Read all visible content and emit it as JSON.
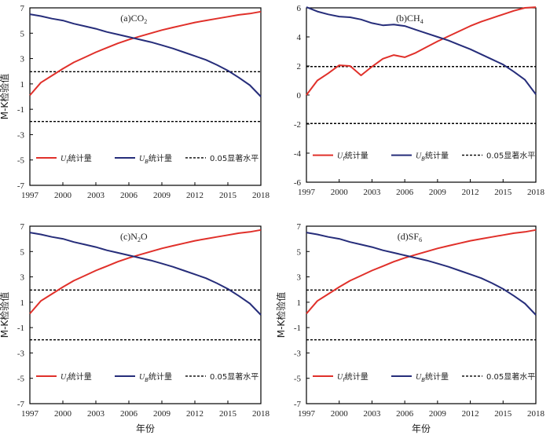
{
  "colors": {
    "uf": "#e0302a",
    "ub": "#262d7a",
    "threshold": "#000000",
    "frame": "#000000"
  },
  "legend_labels": {
    "uf": "U",
    "uf_sub": "f",
    "ub": "U",
    "ub_sub": "B",
    "stat": "统计量",
    "threshold": "0.05显著水平"
  },
  "chart_data": [
    {
      "type": "line",
      "title": "(a)CO",
      "title_sub": "2",
      "ylabel": "M-K检验值",
      "xlabel": "",
      "x": [
        1997,
        1998,
        1999,
        2000,
        2001,
        2002,
        2003,
        2004,
        2005,
        2006,
        2007,
        2008,
        2009,
        2010,
        2011,
        2012,
        2013,
        2014,
        2015,
        2016,
        2017,
        2018
      ],
      "xlim": [
        1997,
        2018
      ],
      "xticks": [
        "1997",
        "2000",
        "2003",
        "2006",
        "2009",
        "2012",
        "2015",
        "2018"
      ],
      "ylim": [
        -7,
        7
      ],
      "yticks": [
        "7",
        "5",
        "3",
        "1",
        "-1",
        "-3",
        "-5",
        "-7"
      ],
      "series": [
        {
          "key": "uf",
          "values": [
            0.1,
            1.1,
            1.65,
            2.2,
            2.7,
            3.1,
            3.5,
            3.85,
            4.2,
            4.5,
            4.75,
            5.0,
            5.25,
            5.45,
            5.65,
            5.85,
            6.0,
            6.15,
            6.3,
            6.45,
            6.55,
            6.7
          ]
        },
        {
          "key": "ub",
          "values": [
            6.5,
            6.35,
            6.15,
            6.0,
            5.75,
            5.55,
            5.35,
            5.1,
            4.9,
            4.7,
            4.5,
            4.3,
            4.05,
            3.8,
            3.5,
            3.2,
            2.9,
            2.5,
            2.05,
            1.5,
            0.9,
            0.0
          ]
        }
      ],
      "threshold": [
        1.96,
        -1.96
      ]
    },
    {
      "type": "line",
      "title": "(b)CH",
      "title_sub": "4",
      "ylabel": "",
      "xlabel": "",
      "x": [
        1997,
        1998,
        1999,
        2000,
        2001,
        2002,
        2003,
        2004,
        2005,
        2006,
        2007,
        2008,
        2009,
        2010,
        2011,
        2012,
        2013,
        2014,
        2015,
        2016,
        2017,
        2018
      ],
      "xlim": [
        1997,
        2018
      ],
      "xticks": [
        "1997",
        "2000",
        "2003",
        "2006",
        "2009",
        "2012",
        "2015",
        "2018"
      ],
      "ylim": [
        -6,
        6
      ],
      "yticks": [
        "6",
        "4",
        "2",
        "0",
        "-2",
        "-4",
        "-6"
      ],
      "series": [
        {
          "key": "uf",
          "values": [
            0.0,
            1.0,
            1.5,
            2.05,
            2.0,
            1.35,
            1.95,
            2.5,
            2.75,
            2.6,
            2.9,
            3.3,
            3.7,
            4.05,
            4.4,
            4.75,
            5.05,
            5.3,
            5.55,
            5.8,
            6.0,
            6.05
          ]
        },
        {
          "key": "ub",
          "values": [
            6.05,
            5.75,
            5.55,
            5.4,
            5.35,
            5.2,
            4.95,
            4.8,
            4.85,
            4.75,
            4.5,
            4.25,
            4.0,
            3.75,
            3.45,
            3.15,
            2.8,
            2.45,
            2.1,
            1.6,
            1.05,
            0.05
          ]
        }
      ],
      "threshold": [
        1.96,
        -1.96
      ]
    },
    {
      "type": "line",
      "title": "(c)N",
      "title_sub": "2",
      "title_tail": "O",
      "ylabel": "M-K检验值",
      "xlabel": "年份",
      "x": [
        1997,
        1998,
        1999,
        2000,
        2001,
        2002,
        2003,
        2004,
        2005,
        2006,
        2007,
        2008,
        2009,
        2010,
        2011,
        2012,
        2013,
        2014,
        2015,
        2016,
        2017,
        2018
      ],
      "xlim": [
        1997,
        2018
      ],
      "xticks": [
        "1997",
        "2000",
        "2003",
        "2006",
        "2009",
        "2012",
        "2015",
        "2018"
      ],
      "ylim": [
        -7,
        7
      ],
      "yticks": [
        "7",
        "5",
        "3",
        "1",
        "-1",
        "-3",
        "-5",
        "-7"
      ],
      "series": [
        {
          "key": "uf",
          "values": [
            0.1,
            1.1,
            1.65,
            2.2,
            2.7,
            3.1,
            3.5,
            3.85,
            4.2,
            4.5,
            4.75,
            5.0,
            5.25,
            5.45,
            5.65,
            5.85,
            6.0,
            6.15,
            6.3,
            6.45,
            6.55,
            6.7
          ]
        },
        {
          "key": "ub",
          "values": [
            6.5,
            6.35,
            6.15,
            6.0,
            5.75,
            5.55,
            5.35,
            5.1,
            4.9,
            4.7,
            4.5,
            4.3,
            4.05,
            3.8,
            3.5,
            3.2,
            2.9,
            2.5,
            2.05,
            1.5,
            0.9,
            0.0
          ]
        }
      ],
      "threshold": [
        1.96,
        -1.96
      ]
    },
    {
      "type": "line",
      "title": "(d)SF",
      "title_sub": "6",
      "ylabel": "M-K检验值",
      "xlabel": "年份",
      "x": [
        1997,
        1998,
        1999,
        2000,
        2001,
        2002,
        2003,
        2004,
        2005,
        2006,
        2007,
        2008,
        2009,
        2010,
        2011,
        2012,
        2013,
        2014,
        2015,
        2016,
        2017,
        2018
      ],
      "xlim": [
        1997,
        2018
      ],
      "xticks": [
        "1997",
        "2000",
        "2003",
        "2006",
        "2009",
        "2012",
        "2015",
        "2018"
      ],
      "ylim": [
        -7,
        7
      ],
      "yticks": [
        "7",
        "5",
        "3",
        "1",
        "-1",
        "-3",
        "-5",
        "-7"
      ],
      "series": [
        {
          "key": "uf",
          "values": [
            0.1,
            1.1,
            1.65,
            2.2,
            2.7,
            3.1,
            3.5,
            3.85,
            4.2,
            4.5,
            4.75,
            5.0,
            5.25,
            5.45,
            5.65,
            5.85,
            6.0,
            6.15,
            6.3,
            6.45,
            6.55,
            6.7
          ]
        },
        {
          "key": "ub",
          "values": [
            6.5,
            6.35,
            6.15,
            6.0,
            5.75,
            5.55,
            5.35,
            5.1,
            4.9,
            4.7,
            4.5,
            4.3,
            4.05,
            3.8,
            3.5,
            3.2,
            2.9,
            2.5,
            2.05,
            1.5,
            0.9,
            0.0
          ]
        }
      ],
      "threshold": [
        1.96,
        -1.96
      ]
    }
  ]
}
